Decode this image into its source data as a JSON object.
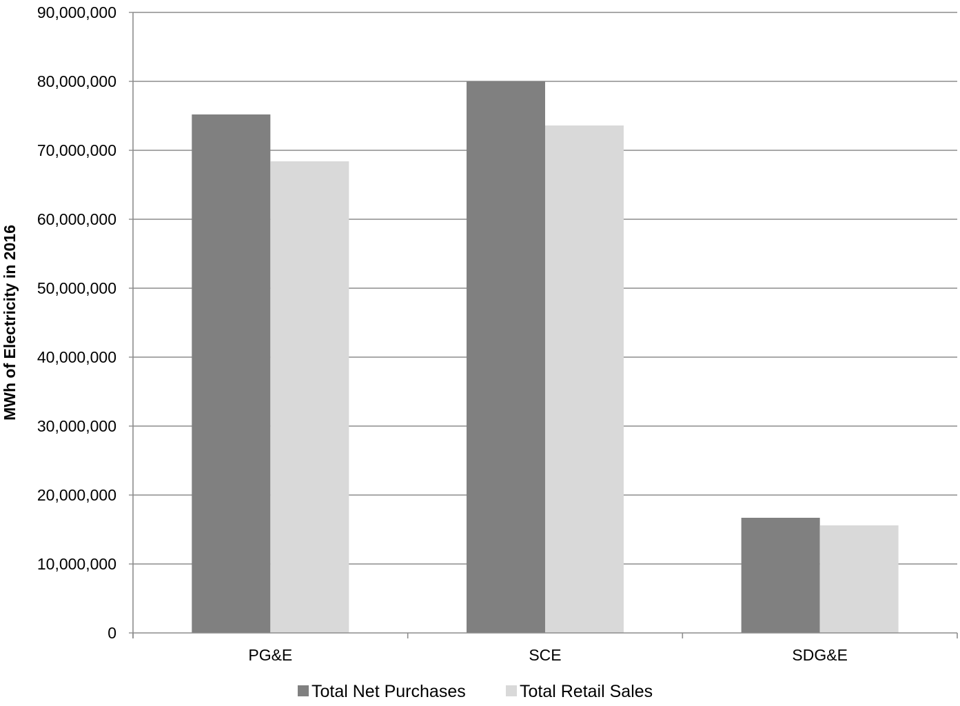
{
  "colors": {
    "series_net_purchases": "#808080",
    "series_retail_sales": "#d9d9d9",
    "gridline": "#8c8c8c",
    "axis": "#8c8c8c",
    "text": "#000000",
    "background": "#ffffff"
  },
  "chart_data": {
    "type": "bar",
    "title": "",
    "xlabel": "",
    "ylabel": "MWh of Electricity in 2016",
    "categories": [
      "PG&E",
      "SCE",
      "SDG&E"
    ],
    "series": [
      {
        "name": "Total Net Purchases",
        "values": [
          75200000,
          80000000,
          16700000
        ]
      },
      {
        "name": "Total Retail Sales",
        "values": [
          68400000,
          73600000,
          15600000
        ]
      }
    ],
    "ylim": [
      0,
      90000000
    ],
    "yticks": [
      0,
      10000000,
      20000000,
      30000000,
      40000000,
      50000000,
      60000000,
      70000000,
      80000000,
      90000000
    ],
    "ytick_labels": [
      "0",
      "10,000,000",
      "20,000,000",
      "30,000,000",
      "40,000,000",
      "50,000,000",
      "60,000,000",
      "70,000,000",
      "80,000,000",
      "90,000,000"
    ],
    "grid": true,
    "legend_position": "bottom"
  }
}
